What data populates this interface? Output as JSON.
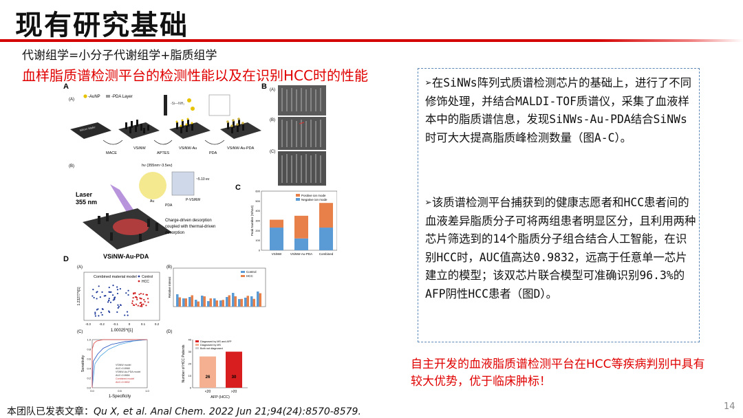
{
  "slide": {
    "title": "现有研究基础",
    "subtitle": "代谢组学=小分子代谢组学+脂质组学",
    "heading": "血样脂质谱检测平台的检测性能以及在识别HCC时的性能",
    "bullets": [
      "➢在SiNWs阵列式质谱检测芯片的基础上，进行了不同修饰处理，并结合MALDI-TOF质谱仪，采集了血液样本中的脂质谱信息，发现SiNWs-Au-PDA结合SiNWs时可大大提高脂质峰检测数量（图A-C）。",
      "➢该质谱检测平台捕获到的健康志愿者和HCC患者间的血液差异脂质分子可将两组患者明显区分，且利用两种芯片筛选到的14个脂质分子组合结合人工智能，在识别HCC时，AUC值高达0.9832，远高于任意单一芯片建立的模型；该双芯片联合模型可准确识别96.3%的AFP阴性HCC患者（图D）。"
    ],
    "conclusion": "自主开发的血液脂质谱检测平台在HCC等疾病判别中具有较大优势，优于临床肿标！",
    "reference_prefix": "本团队已发表文章：",
    "reference_citation": "Qu X, et al. Anal Chem. 2022 Jun 21;94(24):8570-8579.",
    "page_number": "14"
  },
  "figure": {
    "panel_A": "A",
    "panel_B": "B",
    "panel_C": "C",
    "panel_D": "D",
    "sub_a": "(A)",
    "sub_b": "(B)",
    "sub_c": "(C)",
    "legend_aunp": "-AuNP",
    "legend_pda": "-PDA Layer",
    "step_labels": [
      "MACE",
      "VSiNW",
      "APTES",
      "VSiNW-Au",
      "PDA",
      "VSiNW-Au-PDA"
    ],
    "chip_label": "Silicon Wafer",
    "laser_label": [
      "Laser",
      "355 nm"
    ],
    "hv_label": "hν (355nm~3.5ev)",
    "energy_label": "~5.10 ev",
    "au_label": "Au",
    "pda_label": "PDA",
    "psinw_label": "P-VSiNW",
    "desorption_text": [
      "Charge-driven desorption",
      "coupled with thermal-driven",
      "desorption"
    ],
    "vsinw_au_pda_label": "VSiNW-Au-PDA",
    "bar_chart": {
      "ylabel": "Peak Number (S/N≥3)",
      "categories": [
        "VSiNW",
        "VSiNW-Au-PDA",
        "Combined"
      ],
      "positive_name": "Positive ion mode",
      "negative_name": "Negative ion mode",
      "negative": [
        230,
        120,
        230
      ],
      "positive": [
        80,
        230,
        250
      ],
      "ymax": 600,
      "yticks": [
        "0",
        "100",
        "200",
        "300",
        "400",
        "500",
        "600"
      ],
      "colors": {
        "positive": "#e8804a",
        "negative": "#5a9bd5"
      }
    },
    "pca": {
      "title": "Combined material model",
      "legend": [
        "Control",
        "HCC"
      ],
      "xlabel": "1.00025*t[1]",
      "ylabel": "1.23277*t[1]",
      "xticks": [
        "-0.3",
        "-0.2",
        "-0.1",
        "0",
        "0.1",
        "0.2"
      ]
    },
    "intensity": {
      "ylabel": "Relative Intensi",
      "legend": [
        "Control",
        "HCC"
      ]
    },
    "roc": {
      "xlabel": "1-Specificity",
      "ylabel": "Sensitivity",
      "legend": [
        "VSiNW model",
        "AUC=0.8968",
        "VSiNW-Au-PDA model",
        "AUC=0.8684",
        "Combined model",
        "AUC=0.9832"
      ],
      "xticks": [
        "0.0",
        "0.5",
        "1.0"
      ],
      "yticks": [
        "0.0",
        "0.2",
        "0.4",
        "0.6",
        "0.8",
        "1.0"
      ]
    },
    "hcc_bars": {
      "ylabel": "Number of HCC Patients",
      "xlabel": "AFP (HCC)",
      "categories": [
        "<20",
        ">20"
      ],
      "values": [
        26,
        30
      ],
      "value_labels": [
        "26",
        "30"
      ],
      "legend": [
        "Diagnosed by MS and AFP",
        "Diagnosed by MS",
        "Both not diagnosed"
      ],
      "yticks": [
        "0",
        "10",
        "20",
        "30",
        "40"
      ],
      "ymax": 40
    }
  }
}
